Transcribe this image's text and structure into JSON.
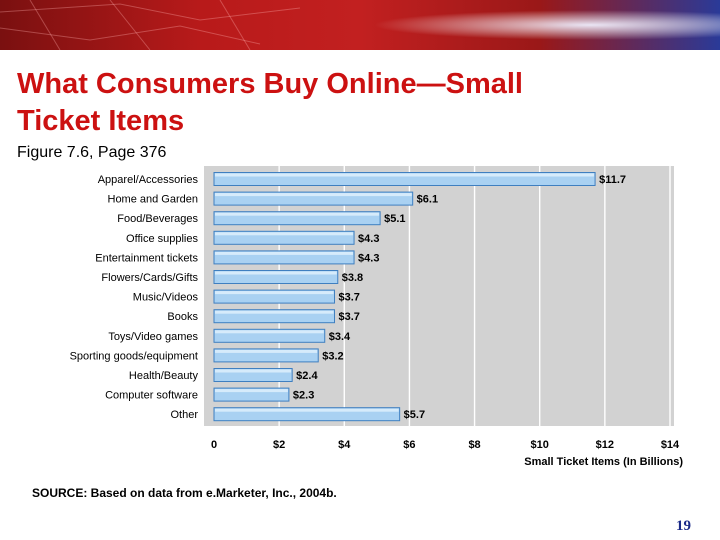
{
  "slide": {
    "title_line1": "What Consumers Buy Online—Small",
    "title_line2": "Ticket Items",
    "subtitle": "Figure 7.6, Page 376",
    "source": "SOURCE: Based on data from e.Marketer, Inc., 2004b.",
    "page_number": "19"
  },
  "colors": {
    "title": "#cc1111",
    "bar_fill": "#a9d1f2",
    "bar_stroke": "#3f7fc0",
    "plot_bg": "#d2d2d2",
    "page_number": "#1a2a88"
  },
  "chart_data": {
    "type": "bar",
    "orientation": "horizontal",
    "title": "",
    "xlabel": "Small Ticket Items (In Billions)",
    "ylabel": "",
    "xlim": [
      0,
      14
    ],
    "xticks": [
      0,
      2,
      4,
      6,
      8,
      10,
      12,
      14
    ],
    "xtick_labels": [
      "0",
      "$2",
      "$4",
      "$6",
      "$8",
      "$10",
      "$12",
      "$14"
    ],
    "grid": "vertical",
    "categories": [
      "Apparel/Accessories",
      "Home and Garden",
      "Food/Beverages",
      "Office supplies",
      "Entertainment tickets",
      "Flowers/Cards/Gifts",
      "Music/Videos",
      "Books",
      "Toys/Video games",
      "Sporting goods/equipment",
      "Health/Beauty",
      "Computer software",
      "Other"
    ],
    "values": [
      11.7,
      6.1,
      5.1,
      4.3,
      4.3,
      3.8,
      3.7,
      3.7,
      3.4,
      3.2,
      2.4,
      2.3,
      5.7
    ],
    "value_labels": [
      "$11.7",
      "$6.1",
      "$5.1",
      "$4.3",
      "$4.3",
      "$3.8",
      "$3.7",
      "$3.7",
      "$3.4",
      "$3.2",
      "$2.4",
      "$2.3",
      "$5.7"
    ]
  }
}
